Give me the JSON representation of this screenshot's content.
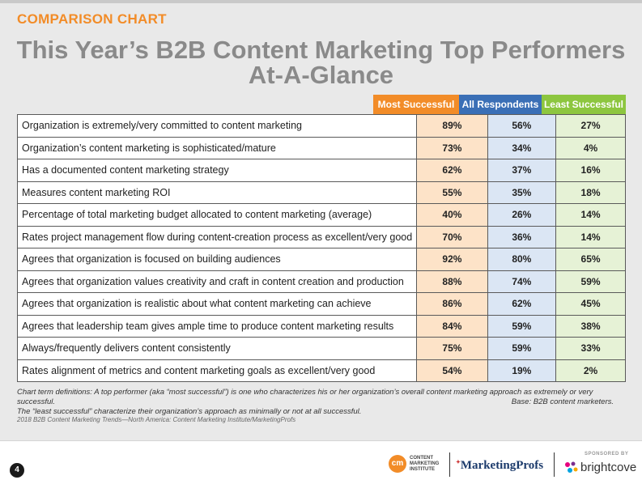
{
  "header": {
    "section_label": "COMPARISON CHART",
    "title_line1": "This Year’s B2B Content Marketing Top Performers",
    "title_line2": "At-A-Glance"
  },
  "chart_data": {
    "type": "table",
    "title": "This Year’s B2B Content Marketing Top Performers At-A-Glance",
    "columns": [
      "Most Successful",
      "All Respondents",
      "Least Successful"
    ],
    "column_colors": [
      "#f28c28",
      "#3a6fb6",
      "#8dc63f"
    ],
    "rows": [
      {
        "label": "Organization is extremely/very committed to content marketing",
        "values": [
          "89%",
          "56%",
          "27%"
        ]
      },
      {
        "label": "Organization’s content marketing is sophisticated/mature",
        "values": [
          "73%",
          "34%",
          "4%"
        ]
      },
      {
        "label": "Has a documented content marketing strategy",
        "values": [
          "62%",
          "37%",
          "16%"
        ]
      },
      {
        "label": "Measures content marketing ROI",
        "values": [
          "55%",
          "35%",
          "18%"
        ]
      },
      {
        "label": "Percentage of total marketing budget allocated to content marketing (average)",
        "values": [
          "40%",
          "26%",
          "14%"
        ]
      },
      {
        "label": "Rates project management flow during content-creation process as excellent/very good",
        "values": [
          "70%",
          "36%",
          "14%"
        ]
      },
      {
        "label": "Agrees that organization is focused on building audiences",
        "values": [
          "92%",
          "80%",
          "65%"
        ]
      },
      {
        "label": "Agrees that organization values creativity and craft in content creation and production",
        "values": [
          "88%",
          "74%",
          "59%"
        ]
      },
      {
        "label": "Agrees that organization is realistic about what content marketing can achieve",
        "values": [
          "86%",
          "62%",
          "45%"
        ]
      },
      {
        "label": "Agrees that leadership team gives ample time to produce content marketing results",
        "values": [
          "84%",
          "59%",
          "38%"
        ]
      },
      {
        "label": "Always/frequently delivers content consistently",
        "values": [
          "75%",
          "59%",
          "33%"
        ]
      },
      {
        "label": "Rates alignment of metrics and content marketing goals as excellent/very good",
        "values": [
          "54%",
          "19%",
          "2%"
        ]
      }
    ]
  },
  "notes": {
    "definitions_line1": "Chart term definitions: A top performer (aka “most successful”) is one who characterizes his or her organization’s overall content marketing approach as extremely or very successful.",
    "definitions_line2": "The “least successful” characterize their organization’s approach as minimally or not at all successful.",
    "base": "Base: B2B content marketers.",
    "source": "2018 B2B Content Marketing Trends—North America: Content Marketing Institute/MarketingProfs"
  },
  "footer": {
    "page_number": "4",
    "cmi_mark": "cm",
    "cmi_line1": "CONTENT",
    "cmi_line2": "MARKETING",
    "cmi_line3": "INSTITUTE",
    "marketingprofs": "MarketingProfs",
    "sponsored_by": "SPONSORED BY",
    "brightcove": "brightcove"
  }
}
